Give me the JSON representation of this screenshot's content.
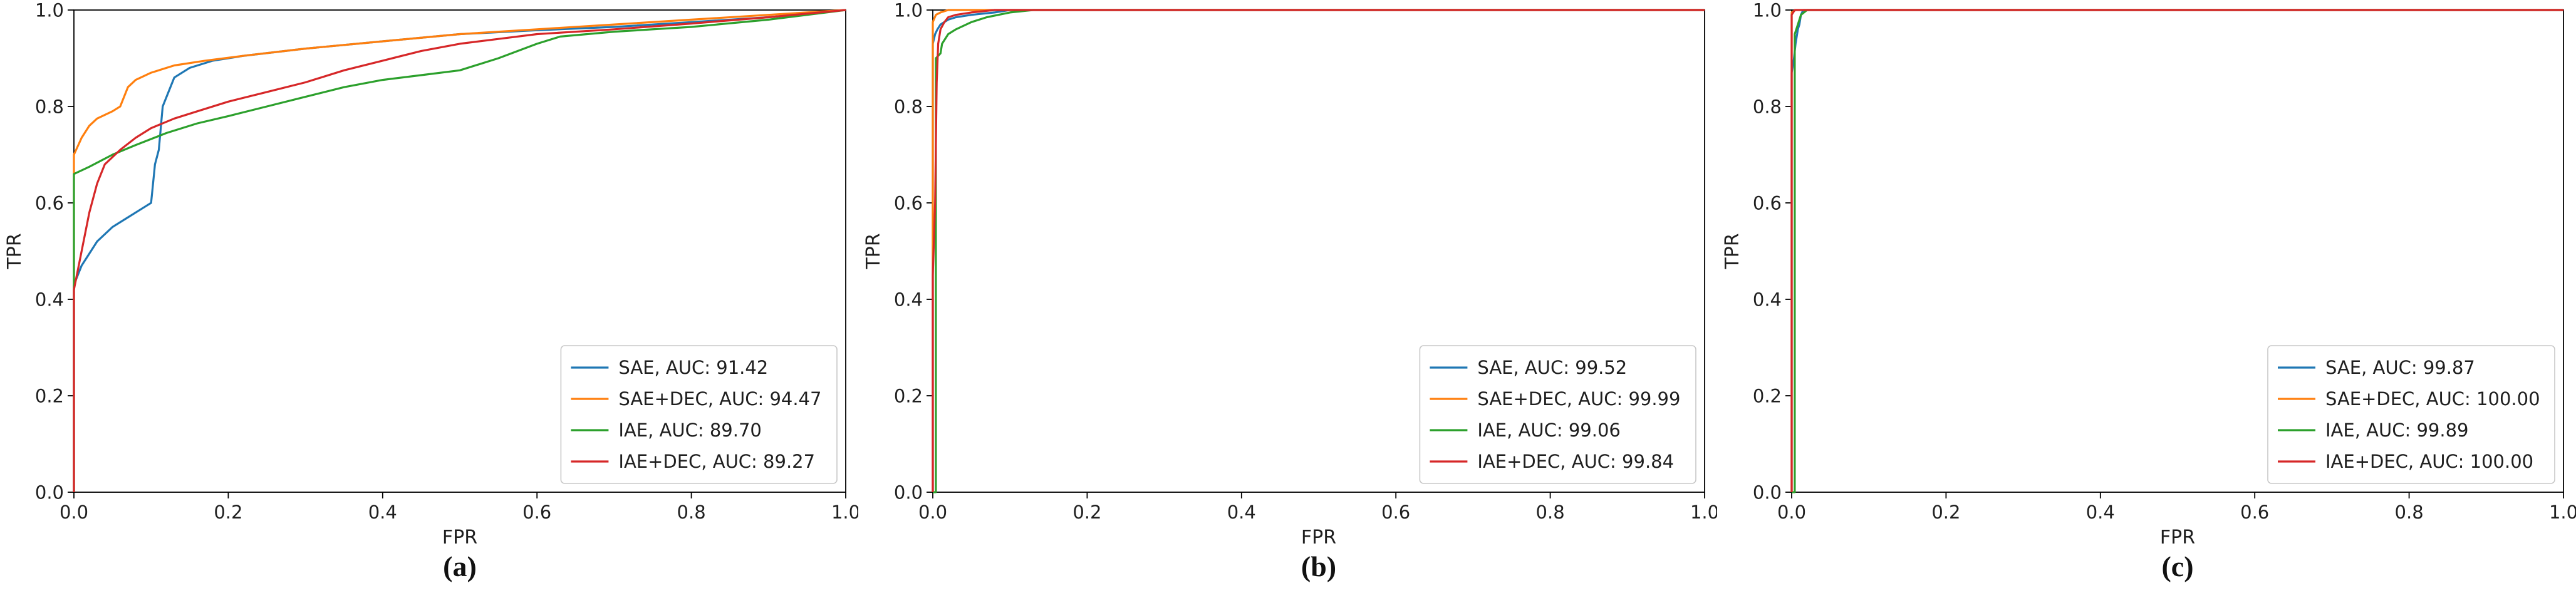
{
  "figure": {
    "captions": [
      "(a)",
      "(b)",
      "(c)"
    ]
  },
  "chart_data": [
    {
      "type": "line",
      "subtype": "roc-curve",
      "caption": "(a)",
      "xlabel": "FPR",
      "ylabel": "TPR",
      "xlim": [
        0.0,
        1.0
      ],
      "ylim": [
        0.0,
        1.0
      ],
      "xticks": [
        0.0,
        0.2,
        0.4,
        0.6,
        0.8,
        1.0
      ],
      "yticks": [
        0.0,
        0.2,
        0.4,
        0.6,
        0.8,
        1.0
      ],
      "xtick_labels": [
        "0.0",
        "0.2",
        "0.4",
        "0.6",
        "0.8",
        "1.0"
      ],
      "ytick_labels": [
        "0.0",
        "0.2",
        "0.4",
        "0.6",
        "0.8",
        "1.0"
      ],
      "grid": false,
      "legend_position": "lower right",
      "series": [
        {
          "name": "SAE",
          "auc": 91.42,
          "legend_label": "SAE, AUC: 91.42",
          "color": "#1f77b4",
          "points": [
            [
              0,
              0
            ],
            [
              0,
              0.43
            ],
            [
              0.01,
              0.47
            ],
            [
              0.03,
              0.52
            ],
            [
              0.05,
              0.55
            ],
            [
              0.07,
              0.57
            ],
            [
              0.09,
              0.59
            ],
            [
              0.1,
              0.6
            ],
            [
              0.105,
              0.68
            ],
            [
              0.11,
              0.71
            ],
            [
              0.115,
              0.8
            ],
            [
              0.13,
              0.86
            ],
            [
              0.15,
              0.88
            ],
            [
              0.18,
              0.895
            ],
            [
              0.22,
              0.905
            ],
            [
              0.3,
              0.92
            ],
            [
              0.4,
              0.935
            ],
            [
              0.5,
              0.95
            ],
            [
              0.6,
              0.958
            ],
            [
              0.7,
              0.965
            ],
            [
              0.8,
              0.975
            ],
            [
              0.9,
              0.985
            ],
            [
              1.0,
              1.0
            ]
          ]
        },
        {
          "name": "SAE+DEC",
          "auc": 94.47,
          "legend_label": "SAE+DEC, AUC: 94.47",
          "color": "#ff7f0e",
          "points": [
            [
              0,
              0
            ],
            [
              0,
              0.7
            ],
            [
              0.01,
              0.735
            ],
            [
              0.02,
              0.76
            ],
            [
              0.03,
              0.775
            ],
            [
              0.05,
              0.79
            ],
            [
              0.06,
              0.8
            ],
            [
              0.07,
              0.84
            ],
            [
              0.08,
              0.855
            ],
            [
              0.1,
              0.87
            ],
            [
              0.13,
              0.885
            ],
            [
              0.17,
              0.895
            ],
            [
              0.22,
              0.905
            ],
            [
              0.3,
              0.92
            ],
            [
              0.4,
              0.935
            ],
            [
              0.5,
              0.95
            ],
            [
              0.6,
              0.96
            ],
            [
              0.7,
              0.97
            ],
            [
              0.8,
              0.98
            ],
            [
              0.9,
              0.99
            ],
            [
              1.0,
              1.0
            ]
          ]
        },
        {
          "name": "IAE",
          "auc": 89.7,
          "legend_label": "IAE, AUC: 89.70",
          "color": "#2ca02c",
          "points": [
            [
              0,
              0
            ],
            [
              0,
              0.66
            ],
            [
              0.02,
              0.675
            ],
            [
              0.05,
              0.7
            ],
            [
              0.08,
              0.72
            ],
            [
              0.12,
              0.745
            ],
            [
              0.16,
              0.765
            ],
            [
              0.2,
              0.78
            ],
            [
              0.25,
              0.8
            ],
            [
              0.3,
              0.82
            ],
            [
              0.35,
              0.84
            ],
            [
              0.4,
              0.855
            ],
            [
              0.45,
              0.865
            ],
            [
              0.5,
              0.875
            ],
            [
              0.55,
              0.9
            ],
            [
              0.6,
              0.93
            ],
            [
              0.63,
              0.945
            ],
            [
              0.7,
              0.955
            ],
            [
              0.8,
              0.965
            ],
            [
              0.9,
              0.98
            ],
            [
              1.0,
              1.0
            ]
          ]
        },
        {
          "name": "IAE+DEC",
          "auc": 89.27,
          "legend_label": "IAE+DEC, AUC: 89.27",
          "color": "#d62728",
          "points": [
            [
              0,
              0
            ],
            [
              0,
              0.42
            ],
            [
              0.01,
              0.5
            ],
            [
              0.02,
              0.58
            ],
            [
              0.03,
              0.64
            ],
            [
              0.04,
              0.68
            ],
            [
              0.06,
              0.71
            ],
            [
              0.08,
              0.735
            ],
            [
              0.1,
              0.755
            ],
            [
              0.13,
              0.775
            ],
            [
              0.16,
              0.79
            ],
            [
              0.2,
              0.81
            ],
            [
              0.25,
              0.83
            ],
            [
              0.3,
              0.85
            ],
            [
              0.35,
              0.875
            ],
            [
              0.4,
              0.895
            ],
            [
              0.45,
              0.915
            ],
            [
              0.5,
              0.93
            ],
            [
              0.55,
              0.94
            ],
            [
              0.6,
              0.95
            ],
            [
              0.7,
              0.96
            ],
            [
              0.8,
              0.972
            ],
            [
              0.9,
              0.985
            ],
            [
              1.0,
              1.0
            ]
          ]
        }
      ]
    },
    {
      "type": "line",
      "subtype": "roc-curve",
      "caption": "(b)",
      "xlabel": "FPR",
      "ylabel": "TPR",
      "xlim": [
        0.0,
        1.0
      ],
      "ylim": [
        0.0,
        1.0
      ],
      "xticks": [
        0.0,
        0.2,
        0.4,
        0.6,
        0.8,
        1.0
      ],
      "yticks": [
        0.0,
        0.2,
        0.4,
        0.6,
        0.8,
        1.0
      ],
      "xtick_labels": [
        "0.0",
        "0.2",
        "0.4",
        "0.6",
        "0.8",
        "1.0"
      ],
      "ytick_labels": [
        "0.0",
        "0.2",
        "0.4",
        "0.6",
        "0.8",
        "1.0"
      ],
      "grid": false,
      "legend_position": "lower right",
      "series": [
        {
          "name": "SAE",
          "auc": 99.52,
          "legend_label": "SAE, AUC: 99.52",
          "color": "#1f77b4",
          "points": [
            [
              0,
              0
            ],
            [
              0,
              0.93
            ],
            [
              0.003,
              0.95
            ],
            [
              0.006,
              0.96
            ],
            [
              0.01,
              0.97
            ],
            [
              0.02,
              0.98
            ],
            [
              0.03,
              0.985
            ],
            [
              0.05,
              0.99
            ],
            [
              0.08,
              0.995
            ],
            [
              0.1,
              1.0
            ],
            [
              1.0,
              1.0
            ]
          ]
        },
        {
          "name": "SAE+DEC",
          "auc": 99.99,
          "legend_label": "SAE+DEC, AUC: 99.99",
          "color": "#ff7f0e",
          "points": [
            [
              0,
              0
            ],
            [
              0,
              0.975
            ],
            [
              0.004,
              0.99
            ],
            [
              0.01,
              0.995
            ],
            [
              0.02,
              1.0
            ],
            [
              1.0,
              1.0
            ]
          ]
        },
        {
          "name": "IAE",
          "auc": 99.06,
          "legend_label": "IAE, AUC: 99.06",
          "color": "#2ca02c",
          "points": [
            [
              0,
              0
            ],
            [
              0.004,
              0
            ],
            [
              0.004,
              0.9
            ],
            [
              0.01,
              0.91
            ],
            [
              0.012,
              0.93
            ],
            [
              0.02,
              0.95
            ],
            [
              0.03,
              0.96
            ],
            [
              0.05,
              0.975
            ],
            [
              0.07,
              0.985
            ],
            [
              0.1,
              0.995
            ],
            [
              0.13,
              1.0
            ],
            [
              1.0,
              1.0
            ]
          ]
        },
        {
          "name": "IAE+DEC",
          "auc": 99.84,
          "legend_label": "IAE+DEC, AUC: 99.84",
          "color": "#d62728",
          "points": [
            [
              0,
              0
            ],
            [
              0,
              0.45
            ],
            [
              0.003,
              0.6
            ],
            [
              0.005,
              0.85
            ],
            [
              0.007,
              0.93
            ],
            [
              0.01,
              0.96
            ],
            [
              0.015,
              0.975
            ],
            [
              0.02,
              0.985
            ],
            [
              0.03,
              0.99
            ],
            [
              0.05,
              0.995
            ],
            [
              0.08,
              1.0
            ],
            [
              1.0,
              1.0
            ]
          ]
        }
      ]
    },
    {
      "type": "line",
      "subtype": "roc-curve",
      "caption": "(c)",
      "xlabel": "FPR",
      "ylabel": "TPR",
      "xlim": [
        0.0,
        1.0
      ],
      "ylim": [
        0.0,
        1.0
      ],
      "xticks": [
        0.0,
        0.2,
        0.4,
        0.6,
        0.8,
        1.0
      ],
      "yticks": [
        0.0,
        0.2,
        0.4,
        0.6,
        0.8,
        1.0
      ],
      "xtick_labels": [
        "0.0",
        "0.2",
        "0.4",
        "0.6",
        "0.8",
        "1.0"
      ],
      "ytick_labels": [
        "0.0",
        "0.2",
        "0.4",
        "0.6",
        "0.8",
        "1.0"
      ],
      "grid": false,
      "legend_position": "lower right",
      "series": [
        {
          "name": "SAE",
          "auc": 99.87,
          "legend_label": "SAE, AUC: 99.87",
          "color": "#1f77b4",
          "points": [
            [
              0,
              0
            ],
            [
              0,
              0.87
            ],
            [
              0.003,
              0.9
            ],
            [
              0.005,
              0.93
            ],
            [
              0.008,
              0.96
            ],
            [
              0.01,
              0.97
            ],
            [
              0.012,
              0.99
            ],
            [
              0.015,
              1.0
            ],
            [
              1.0,
              1.0
            ]
          ]
        },
        {
          "name": "SAE+DEC",
          "auc": 100.0,
          "legend_label": "SAE+DEC, AUC: 100.00",
          "color": "#ff7f0e",
          "points": [
            [
              0,
              0
            ],
            [
              0,
              0.995
            ],
            [
              0.005,
              1.0
            ],
            [
              1.0,
              1.0
            ]
          ]
        },
        {
          "name": "IAE",
          "auc": 99.89,
          "legend_label": "IAE, AUC: 99.89",
          "color": "#2ca02c",
          "points": [
            [
              0,
              0
            ],
            [
              0.004,
              0
            ],
            [
              0.004,
              0.95
            ],
            [
              0.008,
              0.97
            ],
            [
              0.012,
              0.99
            ],
            [
              0.02,
              1.0
            ],
            [
              1.0,
              1.0
            ]
          ]
        },
        {
          "name": "IAE+DEC",
          "auc": 100.0,
          "legend_label": "IAE+DEC, AUC: 100.00",
          "color": "#d62728",
          "points": [
            [
              0,
              0
            ],
            [
              0,
              0.99
            ],
            [
              0.004,
              1.0
            ],
            [
              1.0,
              1.0
            ]
          ]
        }
      ]
    }
  ],
  "style": {
    "spine_color": "#000000",
    "legend_border_color": "#c8c8c8",
    "legend_fill": "#ffffff",
    "text_color": "#1f1f1f"
  }
}
